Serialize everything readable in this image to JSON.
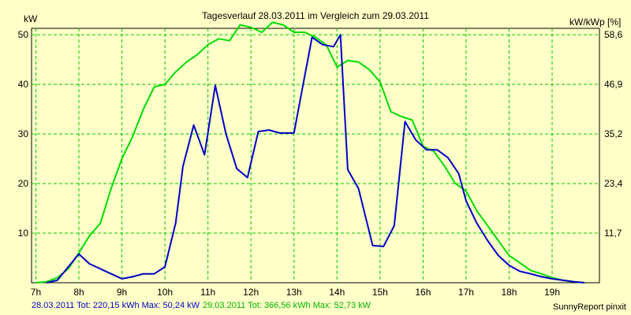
{
  "chart_data": {
    "type": "line",
    "title": "Tagesverlauf 28.03.2011 im Vergleich zum 29.03.2011",
    "ylabel_left": "kW",
    "ylabel_right": "kW/kWp [%]",
    "x_ticks": [
      "7h",
      "8h",
      "9h",
      "10h",
      "11h",
      "12h",
      "13h",
      "14h",
      "15h",
      "16h",
      "17h",
      "18h",
      "19h"
    ],
    "y_ticks_left": [
      "10",
      "20",
      "30",
      "40",
      "50"
    ],
    "y_ticks_right": [
      "11,7",
      "23,4",
      "35,2",
      "46,9",
      "58,6"
    ],
    "xlim": [
      6.9,
      20.1
    ],
    "ylim": [
      0,
      51.3
    ],
    "grid": true,
    "series": [
      {
        "name": "28.03.2011",
        "color": "#0000c8",
        "x": [
          7.25,
          7.5,
          8.0,
          8.25,
          8.5,
          8.75,
          9.0,
          9.25,
          9.5,
          9.75,
          10.0,
          10.25,
          10.42,
          10.67,
          10.92,
          11.17,
          11.42,
          11.67,
          11.92,
          12.17,
          12.42,
          12.67,
          13.0,
          13.42,
          13.67,
          13.92,
          14.08,
          14.25,
          14.5,
          14.83,
          15.08,
          15.33,
          15.58,
          15.83,
          16.08,
          16.33,
          16.58,
          16.83,
          17.0,
          17.25,
          17.5,
          17.75,
          18.0,
          18.25,
          18.5,
          18.75,
          19.0,
          19.5,
          19.75
        ],
        "values": [
          0.0,
          0.5,
          5.8,
          3.8,
          2.8,
          1.8,
          0.8,
          1.2,
          1.8,
          1.8,
          3.2,
          12.0,
          23.5,
          31.8,
          25.8,
          39.8,
          30.0,
          23.0,
          21.2,
          30.5,
          30.8,
          30.2,
          30.2,
          49.5,
          48.0,
          47.6,
          50.0,
          22.8,
          19.0,
          7.5,
          7.3,
          11.5,
          32.5,
          28.8,
          26.8,
          26.8,
          25.2,
          22.0,
          16.5,
          12.0,
          8.5,
          5.5,
          3.5,
          2.3,
          1.8,
          1.2,
          0.8,
          0.2,
          0.0
        ]
      },
      {
        "name": "29.03.2011",
        "color": "#00dc00",
        "x": [
          7.0,
          7.25,
          7.5,
          7.75,
          8.0,
          8.25,
          8.5,
          8.75,
          9.0,
          9.25,
          9.5,
          9.75,
          10.0,
          10.25,
          10.5,
          10.75,
          11.0,
          11.25,
          11.5,
          11.75,
          12.0,
          12.25,
          12.5,
          12.75,
          13.0,
          13.25,
          13.5,
          13.75,
          14.0,
          14.25,
          14.5,
          14.75,
          15.0,
          15.25,
          15.5,
          15.75,
          16.0,
          16.25,
          16.5,
          16.75,
          17.0,
          17.25,
          17.5,
          17.75,
          18.0,
          18.25,
          18.5,
          18.75,
          19.0,
          19.25,
          19.5,
          19.75
        ],
        "values": [
          0.0,
          0.2,
          1.0,
          2.8,
          6.0,
          9.5,
          12.0,
          19.0,
          25.0,
          29.5,
          35.0,
          39.5,
          40.0,
          42.5,
          44.5,
          46.0,
          48.0,
          49.2,
          48.8,
          52.0,
          51.5,
          50.5,
          52.5,
          52.0,
          50.5,
          50.5,
          49.5,
          48.0,
          43.5,
          44.8,
          44.5,
          43.0,
          40.5,
          34.5,
          33.5,
          32.8,
          27.5,
          26.5,
          23.5,
          20.0,
          18.5,
          14.5,
          11.5,
          8.5,
          5.5,
          4.0,
          2.5,
          1.8,
          1.0,
          0.5,
          0.2,
          0.0
        ]
      }
    ],
    "legend_text": [
      {
        "text": "28.03.2011 Tot: 220,15 kWh Max: 50,24 kW",
        "color": "#0000c8"
      },
      {
        "text": "29.03.2011 Tot: 366,56 kWh Max: 52,73 kW",
        "color": "#00b400"
      }
    ],
    "credit": "SunnyReport pinxit"
  }
}
